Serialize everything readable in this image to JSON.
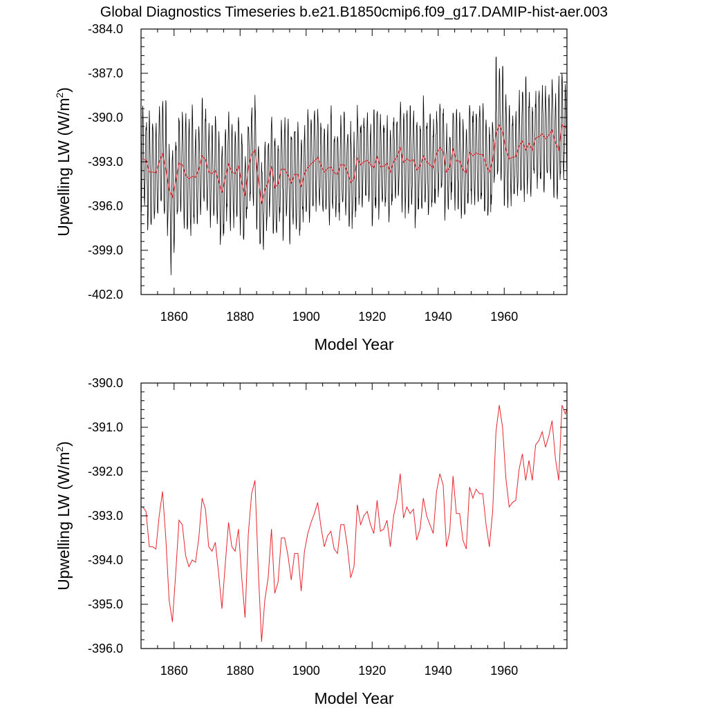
{
  "title": "Global Diagnostics Timeseries b.e21.B1850cmip6.f09_g17.DAMIP-hist-aer.003",
  "colors": {
    "monthly": "#000000",
    "annual": "#e8232b",
    "axis": "#000000",
    "background": "#ffffff"
  },
  "chart_data": [
    {
      "type": "line",
      "xlabel": "Model Year",
      "ylabel": "Upwelling LW (W/m",
      "ylabel_sup": "2",
      "ylabel_close": ")",
      "xlim": [
        1850,
        1979
      ],
      "ylim": [
        -402.0,
        -384.0
      ],
      "xticks": [
        1860,
        1880,
        1900,
        1920,
        1940,
        1960
      ],
      "xtick_labels": [
        "1860",
        "1880",
        "1900",
        "1920",
        "1940",
        "1960"
      ],
      "yticks": [
        -384.0,
        -387.0,
        -390.0,
        -393.0,
        -396.0,
        -399.0,
        -402.0
      ],
      "ytick_labels": [
        "-384.0",
        "-387.0",
        "-390.0",
        "-393.0",
        "-396.0",
        "-399.0",
        "-402.0"
      ],
      "grid": false,
      "series": [
        {
          "color": "#000000",
          "monthly": true,
          "x_start": 1850,
          "annual_means": [
            -392.8,
            -392.9,
            -393.7,
            -393.7,
            -393.75,
            -393.0,
            -392.45,
            -393.5,
            -394.9,
            -395.4,
            -394.3,
            -393.1,
            -393.2,
            -393.9,
            -394.15,
            -394.0,
            -394.05,
            -393.5,
            -392.6,
            -392.85,
            -393.7,
            -393.8,
            -393.6,
            -394.3,
            -395.1,
            -394.1,
            -393.15,
            -393.7,
            -393.8,
            -393.3,
            -394.4,
            -395.3,
            -393.4,
            -392.5,
            -392.2,
            -394.2,
            -395.85,
            -394.9,
            -394.4,
            -393.3,
            -394.75,
            -394.5,
            -393.5,
            -393.5,
            -393.9,
            -394.45,
            -393.85,
            -393.85,
            -394.7,
            -393.8,
            -393.4,
            -393.15,
            -392.95,
            -392.7,
            -393.25,
            -393.7,
            -393.45,
            -393.35,
            -393.75,
            -393.85,
            -393.2,
            -393.2,
            -393.7,
            -394.4,
            -394.15,
            -392.75,
            -393.2,
            -393.0,
            -392.9,
            -393.2,
            -393.4,
            -392.65,
            -393.35,
            -393.3,
            -393.1,
            -393.7,
            -393.0,
            -392.65,
            -392.05,
            -393.05,
            -392.8,
            -392.95,
            -392.85,
            -393.55,
            -393.3,
            -392.6,
            -393.0,
            -393.2,
            -393.4,
            -392.45,
            -392.05,
            -392.3,
            -393.7,
            -393.35,
            -392.1,
            -392.95,
            -392.95,
            -393.55,
            -393.75,
            -392.35,
            -392.6,
            -392.4,
            -392.5,
            -392.5,
            -393.2,
            -393.7,
            -392.9,
            -391.1,
            -390.5,
            -391.0,
            -392.15,
            -392.8,
            -392.7,
            -392.65,
            -391.95,
            -391.6,
            -392.2,
            -391.75,
            -392.2,
            -391.4,
            -391.3,
            -391.1,
            -391.45,
            -391.2,
            -390.85,
            -391.7,
            -392.2,
            -390.5,
            -390.7,
            -390.45
          ],
          "seasonal_amplitude": 2.9,
          "spike_years": [
            1857,
            1865,
            1957,
            1959,
            1966,
            1976
          ],
          "deep_years": [
            1859,
            1860,
            1887,
            1893
          ]
        },
        {
          "color": "#e8232b",
          "annual": true
        }
      ]
    },
    {
      "type": "line",
      "xlabel": "Model Year",
      "ylabel": "Upwelling LW (W/m",
      "ylabel_sup": "2",
      "ylabel_close": ")",
      "xlim": [
        1850,
        1979
      ],
      "ylim": [
        -396.0,
        -390.0
      ],
      "xticks": [
        1860,
        1880,
        1900,
        1920,
        1940,
        1960
      ],
      "xtick_labels": [
        "1860",
        "1880",
        "1900",
        "1920",
        "1940",
        "1960"
      ],
      "yticks": [
        -390.0,
        -391.0,
        -392.0,
        -393.0,
        -394.0,
        -395.0,
        -396.0
      ],
      "ytick_labels": [
        "-390.0",
        "-391.0",
        "-392.0",
        "-393.0",
        "-394.0",
        "-395.0",
        "-396.0"
      ],
      "grid": false,
      "series": [
        {
          "color": "#e8232b",
          "annual": true
        }
      ]
    }
  ]
}
